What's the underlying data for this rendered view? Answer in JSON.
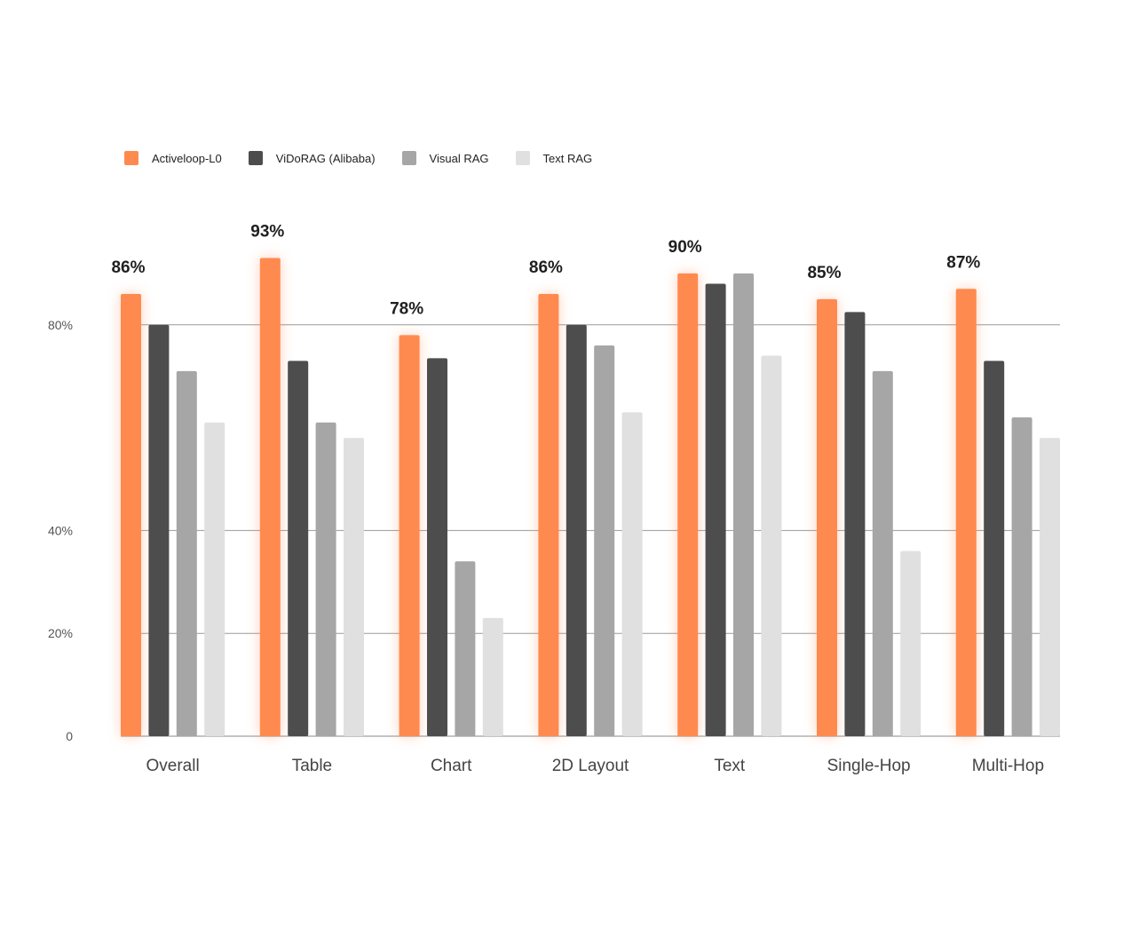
{
  "chart_data": {
    "type": "bar",
    "categories": [
      "Overall",
      "Table",
      "Chart",
      "2D Layout",
      "Text",
      "Single-Hop",
      "Multi-Hop"
    ],
    "series": [
      {
        "name": "Activeloop-L0",
        "color": "#FF8A4F",
        "values": [
          86,
          93,
          78,
          86,
          90,
          85,
          87
        ]
      },
      {
        "name": "ViDoRAG (Alibaba)",
        "color": "#4D4D4D",
        "values": [
          80,
          73,
          73.5,
          80,
          88,
          82.5,
          73
        ]
      },
      {
        "name": "Visual RAG",
        "color": "#A6A6A6",
        "values": [
          71,
          61,
          34,
          76,
          90,
          71,
          62
        ]
      },
      {
        "name": "Text RAG",
        "color": "#E0E0E0",
        "values": [
          61,
          58,
          23,
          63,
          74,
          36,
          58
        ]
      }
    ],
    "data_labels": [
      "86%",
      "93%",
      "78%",
      "86%",
      "90%",
      "85%",
      "87%"
    ],
    "yticks": [
      {
        "value": 0,
        "label": "0"
      },
      {
        "value": 20,
        "label": "20%"
      },
      {
        "value": 40,
        "label": "40%"
      },
      {
        "value": 80,
        "label": "80%"
      }
    ],
    "ylim": [
      0,
      100
    ],
    "grid": true,
    "legend_position": "top-left",
    "title": "",
    "xlabel": "",
    "ylabel": ""
  }
}
